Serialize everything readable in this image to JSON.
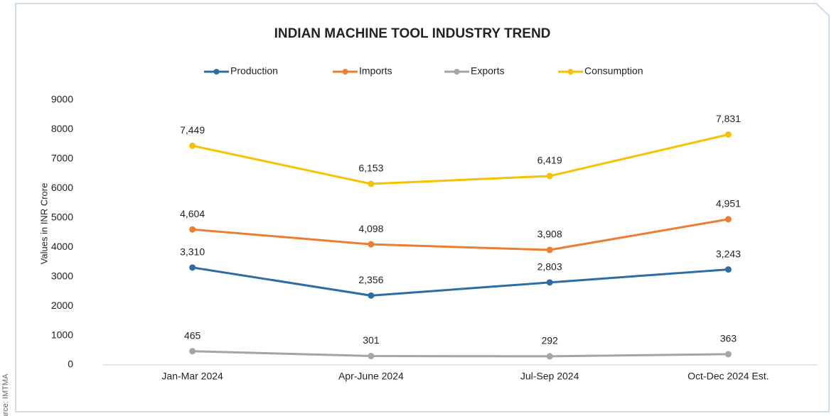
{
  "chart_data": {
    "type": "line",
    "title": "INDIAN MACHINE TOOL INDUSTRY TREND",
    "y_label": "Values in INR Crore",
    "source": "Source: IMTMA",
    "categories": [
      "Jan-Mar 2024",
      "Apr-June 2024",
      "Jul-Sep 2024",
      "Oct-Dec 2024 Est."
    ],
    "series": [
      {
        "name": "Production",
        "color": "#2e6da4",
        "values": [
          3310,
          2356,
          2803,
          3243
        ],
        "value_labels": [
          "3,310",
          "2,356",
          "2,803",
          "3,243"
        ]
      },
      {
        "name": "Imports",
        "color": "#ed7d31",
        "values": [
          4604,
          4098,
          3908,
          4951
        ],
        "value_labels": [
          "4,604",
          "4,098",
          "3,908",
          "4,951"
        ]
      },
      {
        "name": "Exports",
        "color": "#a5a5a5",
        "values": [
          465,
          301,
          292,
          363
        ],
        "value_labels": [
          "465",
          "301",
          "292",
          "363"
        ]
      },
      {
        "name": "Consumption",
        "color": "#f7c100",
        "values": [
          7449,
          6153,
          6419,
          7831
        ],
        "value_labels": [
          "7,449",
          "6,153",
          "6,419",
          "7,831"
        ]
      }
    ],
    "ylim": [
      0,
      9000
    ],
    "yticks": [
      0,
      1000,
      2000,
      3000,
      4000,
      5000,
      6000,
      7000,
      8000,
      9000
    ],
    "grid": false,
    "legend": "top"
  }
}
